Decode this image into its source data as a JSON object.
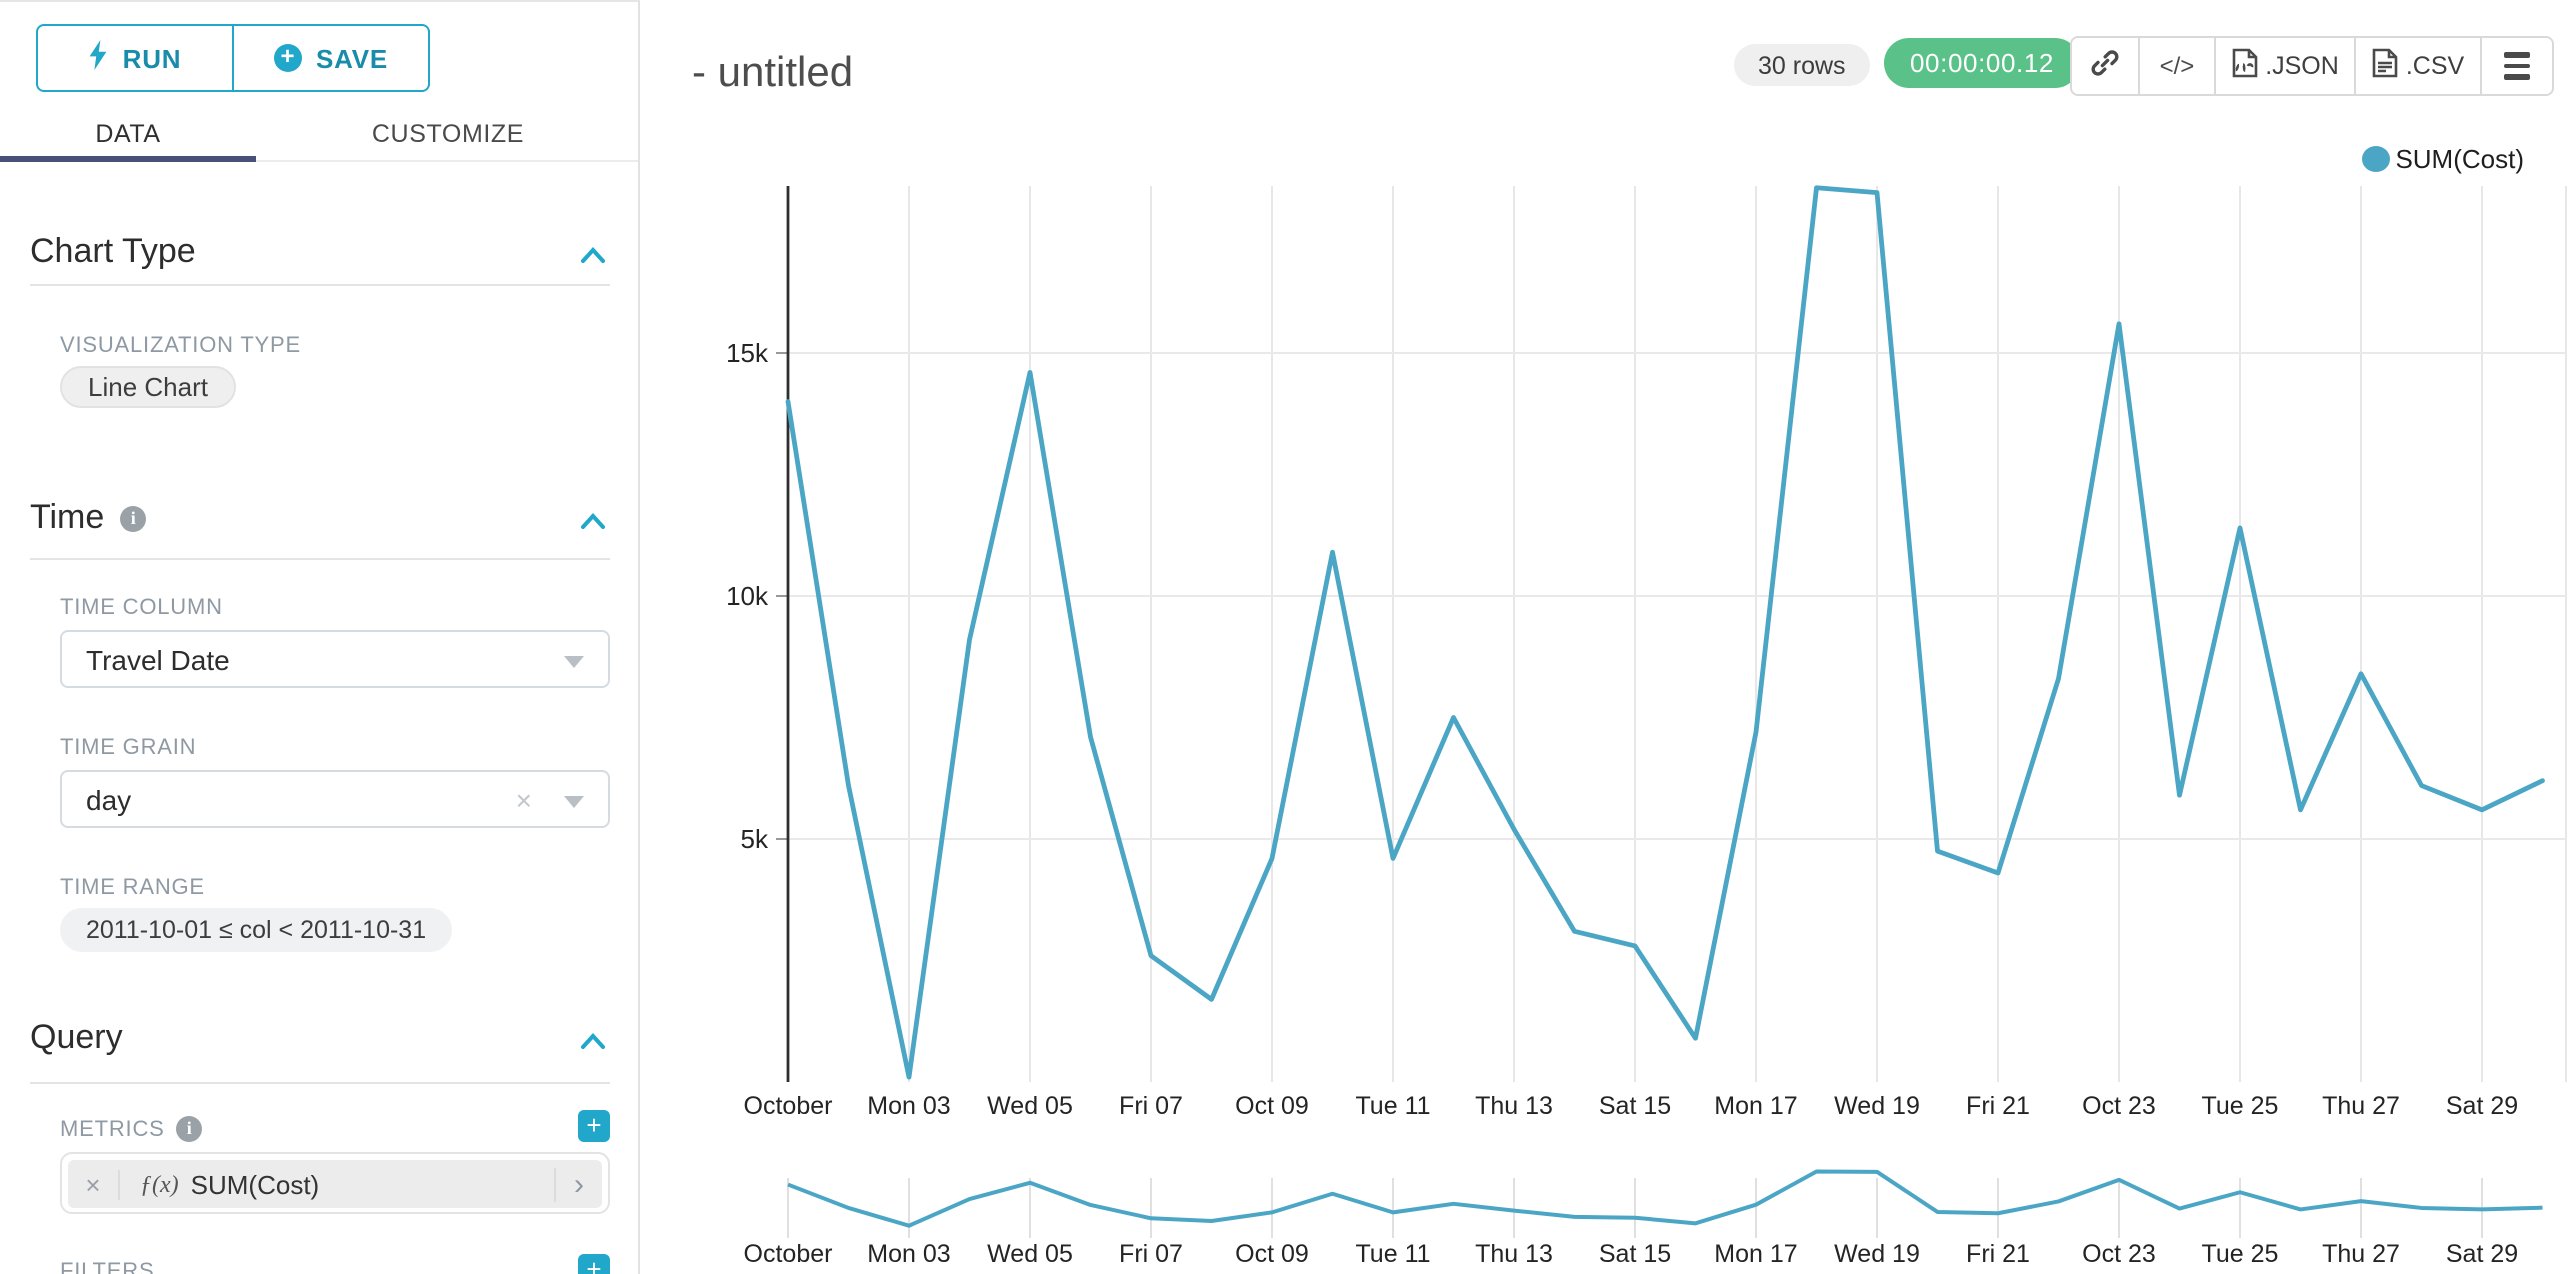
{
  "accent_color": "#20a7c9",
  "tab_underline_color": "#4a5178",
  "panel": {
    "run_label": "RUN",
    "save_label": "SAVE",
    "tabs": {
      "data": "DATA",
      "customize": "CUSTOMIZE"
    },
    "chart_type": {
      "title": "Chart Type",
      "viz_type_label": "VISUALIZATION TYPE",
      "viz_type_value": "Line Chart"
    },
    "time": {
      "title": "Time",
      "time_column_label": "TIME COLUMN",
      "time_column_value": "Travel Date",
      "time_grain_label": "TIME GRAIN",
      "time_grain_value": "day",
      "time_range_label": "TIME RANGE",
      "time_range_value": "2011-10-01 ≤ col < 2011-10-31"
    },
    "query": {
      "title": "Query",
      "metrics_label": "METRICS",
      "metric_fn": "ƒ(x)",
      "metric_value": "SUM(Cost)",
      "filters_label": "FILTERS"
    }
  },
  "header": {
    "title": "- untitled",
    "rows_badge": "30 rows",
    "timer_badge": "00:00:00.12",
    "code_label": "</>",
    "json_label": ".JSON",
    "csv_label": ".CSV"
  },
  "legend": {
    "label": "SUM(Cost)"
  },
  "chart_data": {
    "type": "line",
    "title": "",
    "xlabel": "",
    "ylabel": "",
    "legend": [
      "SUM(Cost)"
    ],
    "legend_position": "top-right",
    "grid": true,
    "color": "#4ba6c5",
    "categories": [
      "2011-10-01",
      "2011-10-02",
      "2011-10-03",
      "2011-10-04",
      "2011-10-05",
      "2011-10-06",
      "2011-10-07",
      "2011-10-08",
      "2011-10-09",
      "2011-10-10",
      "2011-10-11",
      "2011-10-12",
      "2011-10-13",
      "2011-10-14",
      "2011-10-15",
      "2011-10-16",
      "2011-10-17",
      "2011-10-18",
      "2011-10-19",
      "2011-10-20",
      "2011-10-21",
      "2011-10-22",
      "2011-10-23",
      "2011-10-24",
      "2011-10-25",
      "2011-10-26",
      "2011-10-27",
      "2011-10-28",
      "2011-10-29",
      "2011-10-30"
    ],
    "series": [
      {
        "name": "SUM(Cost)",
        "values": [
          14000,
          6100,
          100,
          9100,
          14600,
          7100,
          2600,
          1700,
          4600,
          10900,
          4600,
          7500,
          5200,
          3100,
          2800,
          900,
          7200,
          18400,
          18300,
          4750,
          4300,
          8300,
          15600,
          5900,
          11400,
          5600,
          8400,
          6100,
          5600,
          6200
        ]
      }
    ],
    "ylim": [
      0,
      18800
    ],
    "yticks": [
      5000,
      10000,
      15000
    ],
    "ytick_labels": [
      "5k",
      "10k",
      "15k"
    ],
    "x_tick_labels": [
      "October",
      "Mon 03",
      "Wed 05",
      "Fri 07",
      "Oct 09",
      "Tue 11",
      "Thu 13",
      "Sat 15",
      "Mon 17",
      "Wed 19",
      "Fri 21",
      "Oct 23",
      "Tue 25",
      "Thu 27",
      "Sat 29"
    ],
    "has_range_selector": true
  }
}
